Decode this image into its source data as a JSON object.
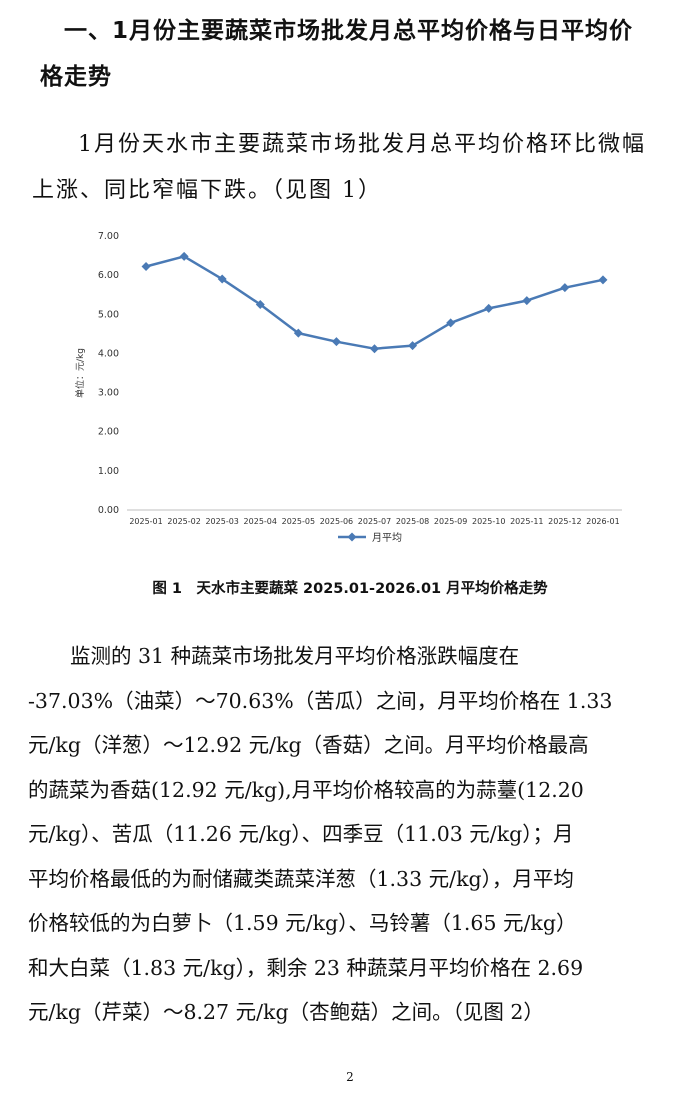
{
  "heading": {
    "line1": "一、1月份主要蔬菜市场批发月总平均价格与日平均价",
    "line2": "格走势"
  },
  "intro": {
    "line1": "1月份天水市主要蔬菜市场批发月总平均价格环比微幅",
    "line2": "上涨、同比窄幅下跌。（见图 1）"
  },
  "chart_data": {
    "type": "line",
    "categories": [
      "2025-01",
      "2025-02",
      "2025-03",
      "2025-04",
      "2025-05",
      "2025-06",
      "2025-07",
      "2025-08",
      "2025-09",
      "2025-10",
      "2025-11",
      "2025-12",
      "2026-01"
    ],
    "series": [
      {
        "name": "月平均",
        "values": [
          6.22,
          6.48,
          5.9,
          5.25,
          4.52,
          4.3,
          4.12,
          4.2,
          4.78,
          5.15,
          5.35,
          5.68,
          5.88
        ],
        "color": "#4a7ab5"
      }
    ],
    "ylabel": "单位：元/kg",
    "yticks": [
      "0.00",
      "1.00",
      "2.00",
      "3.00",
      "4.00",
      "5.00",
      "6.00",
      "7.00"
    ],
    "ylim": [
      0,
      7
    ],
    "grid": false,
    "legend": "bottom",
    "marker": "diamond"
  },
  "caption": "图 1　天水市主要蔬菜 2025.01-2026.01 月平均价格走势",
  "body": {
    "lines": [
      "监测的 31 种蔬菜市场批发月平均价格涨跌幅度在",
      "-37.03%（油菜）～70.63%（苦瓜）之间，月平均价格在 1.33",
      "元/kg（洋葱）～12.92 元/kg（香菇）之间。月平均价格最高",
      "的蔬菜为香菇(12.92 元/kg),月平均价格较高的为蒜薹(12.20",
      "元/kg）、苦瓜（11.26 元/kg）、四季豆（11.03 元/kg）；月",
      "平均价格最低的为耐储藏类蔬菜洋葱（1.33 元/kg），月平均",
      "价格较低的为白萝卜（1.59 元/kg）、马铃薯（1.65 元/kg）",
      "和大白菜（1.83 元/kg），剩余 23 种蔬菜月平均价格在 2.69",
      "元/kg（芹菜）～8.27 元/kg（杏鲍菇）之间。（见图 2）"
    ]
  },
  "page_number": "2"
}
